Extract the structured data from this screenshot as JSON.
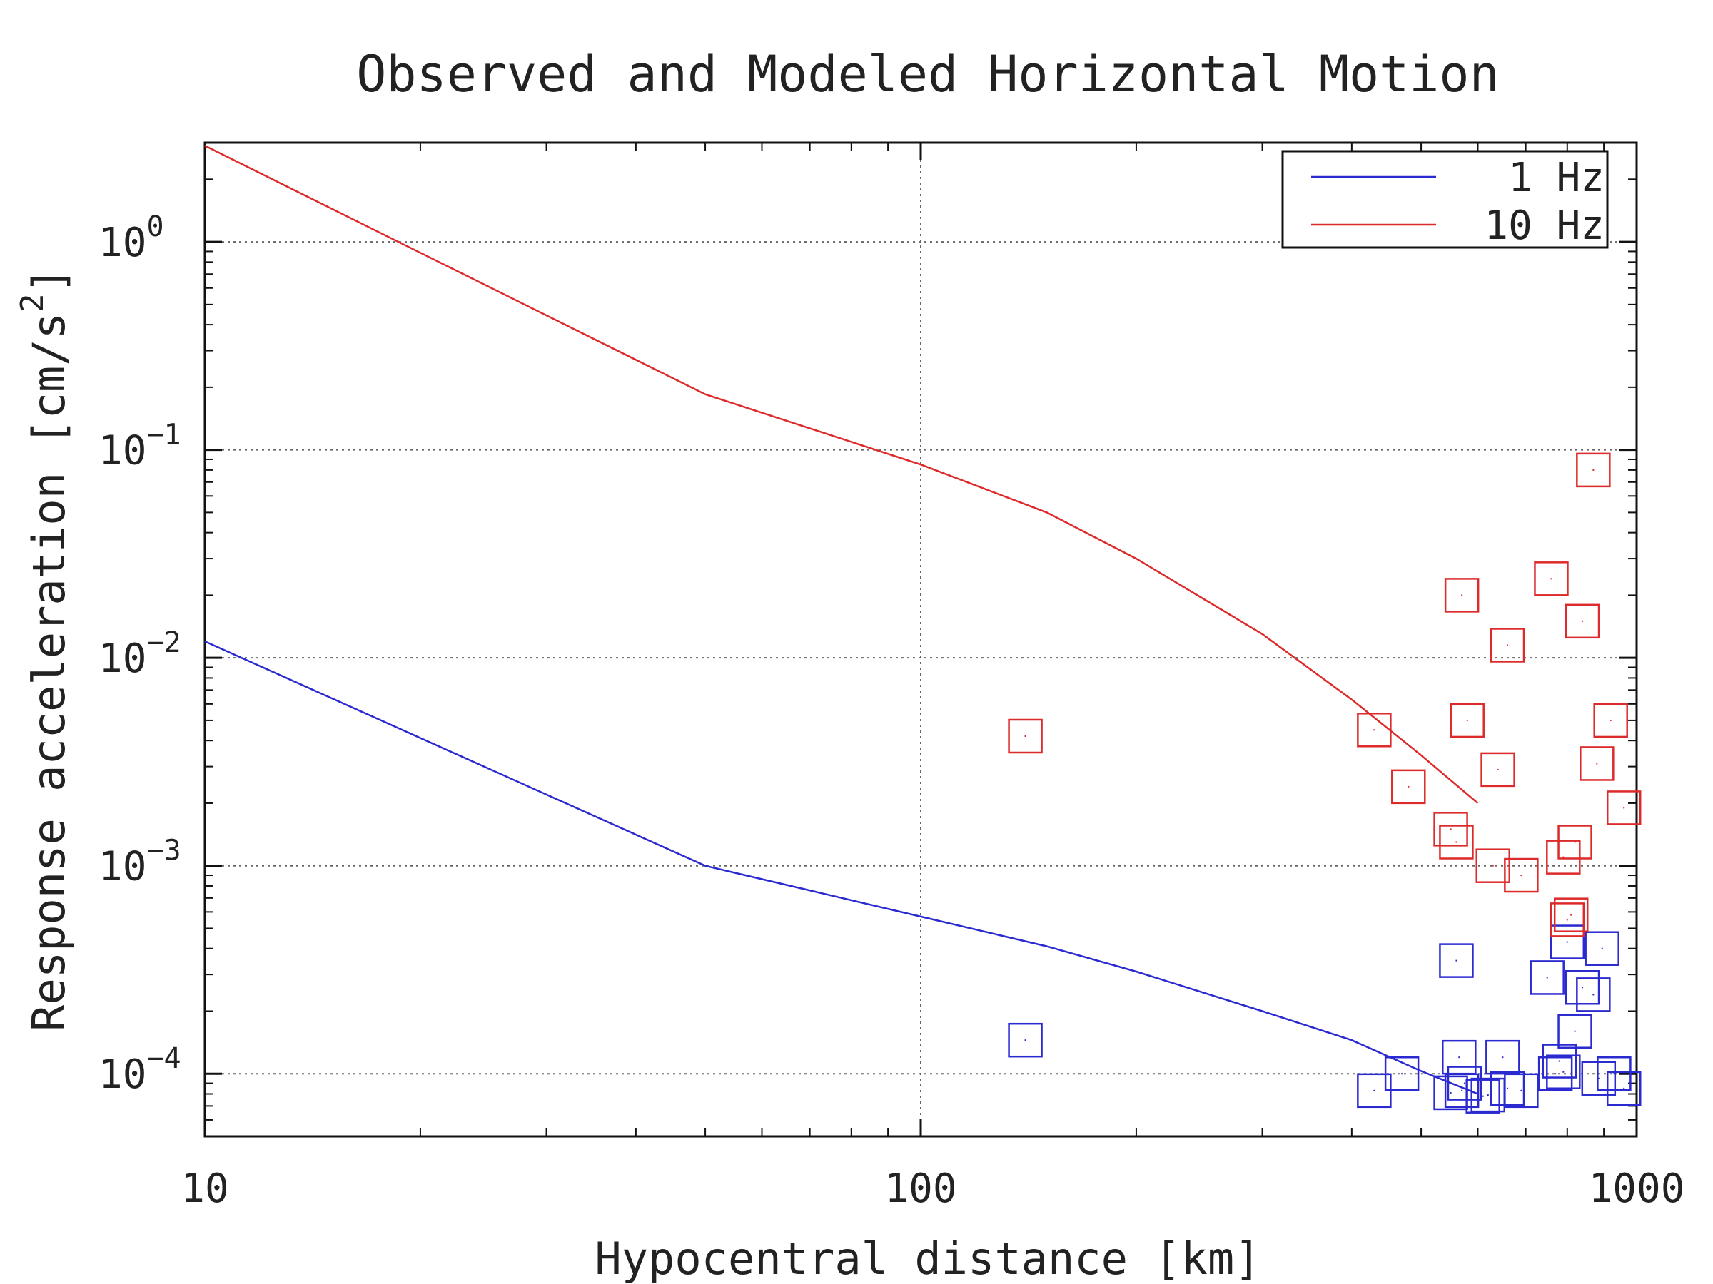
{
  "chart_data": {
    "type": "scatter",
    "title": "Observed and Modeled Horizontal Motion",
    "xlabel": "Hypocentral distance [km]",
    "ylabel": "Response acceleration [cm/s^2]",
    "xscale": "log",
    "yscale": "log",
    "xlim": [
      10,
      1000
    ],
    "ylim": [
      5e-05,
      3
    ],
    "grid": true,
    "legend_position": "top-right",
    "x_ticks": [
      {
        "value": 10,
        "label": "10"
      },
      {
        "value": 100,
        "label": "100"
      },
      {
        "value": 1000,
        "label": "1000"
      }
    ],
    "y_ticks": [
      {
        "value": 1,
        "base": "10",
        "exp": "0"
      },
      {
        "value": 0.1,
        "base": "10",
        "exp": "−1"
      },
      {
        "value": 0.01,
        "base": "10",
        "exp": "−2"
      },
      {
        "value": 0.001,
        "base": "10",
        "exp": "−3"
      },
      {
        "value": 0.0001,
        "base": "10",
        "exp": "−4"
      }
    ],
    "series": [
      {
        "name": "1 Hz",
        "color": "#2a2ad0",
        "model": {
          "x": [
            10,
            50,
            100,
            150,
            200,
            300,
            400,
            500,
            600
          ],
          "y": [
            0.012,
            0.001,
            0.00057,
            0.00041,
            0.00031,
            0.0002,
            0.000145,
            0.000103,
            8e-05
          ]
        },
        "observed": {
          "x": [
            140,
            430,
            470,
            550,
            560,
            565,
            570,
            575,
            610,
            620,
            650,
            660,
            690,
            750,
            770,
            780,
            790,
            800,
            820,
            840,
            870,
            885,
            895,
            930,
            960
          ],
          "y": [
            0.000145,
            8.3e-05,
            0.0001,
            8.1e-05,
            0.00035,
            0.00012,
            8.3e-05,
            9e-05,
            7.8e-05,
            7.9e-05,
            0.00012,
            8.5e-05,
            8.3e-05,
            0.00029,
            0.0001,
            0.000115,
            0.000102,
            0.00043,
            0.00016,
            0.00026,
            0.00024,
            9.5e-05,
            0.0004,
            0.0001,
            8.5e-05
          ]
        }
      },
      {
        "name": "10 Hz",
        "color": "#dd2a2a",
        "model": {
          "x": [
            10,
            50,
            100,
            150,
            200,
            300,
            400,
            500,
            600
          ],
          "y": [
            2.9,
            0.185,
            0.085,
            0.05,
            0.03,
            0.013,
            0.0063,
            0.0034,
            0.002
          ]
        },
        "observed": {
          "x": [
            140,
            430,
            480,
            550,
            560,
            570,
            580,
            630,
            640,
            660,
            690,
            760,
            790,
            800,
            810,
            820,
            840,
            870,
            880,
            920,
            960
          ],
          "y": [
            0.0042,
            0.0045,
            0.0024,
            0.0015,
            0.0013,
            0.02,
            0.005,
            0.001,
            0.0029,
            0.0115,
            0.0009,
            0.024,
            0.0011,
            0.00055,
            0.00058,
            0.0013,
            0.015,
            0.08,
            0.0031,
            0.005,
            0.0019
          ]
        }
      }
    ]
  }
}
